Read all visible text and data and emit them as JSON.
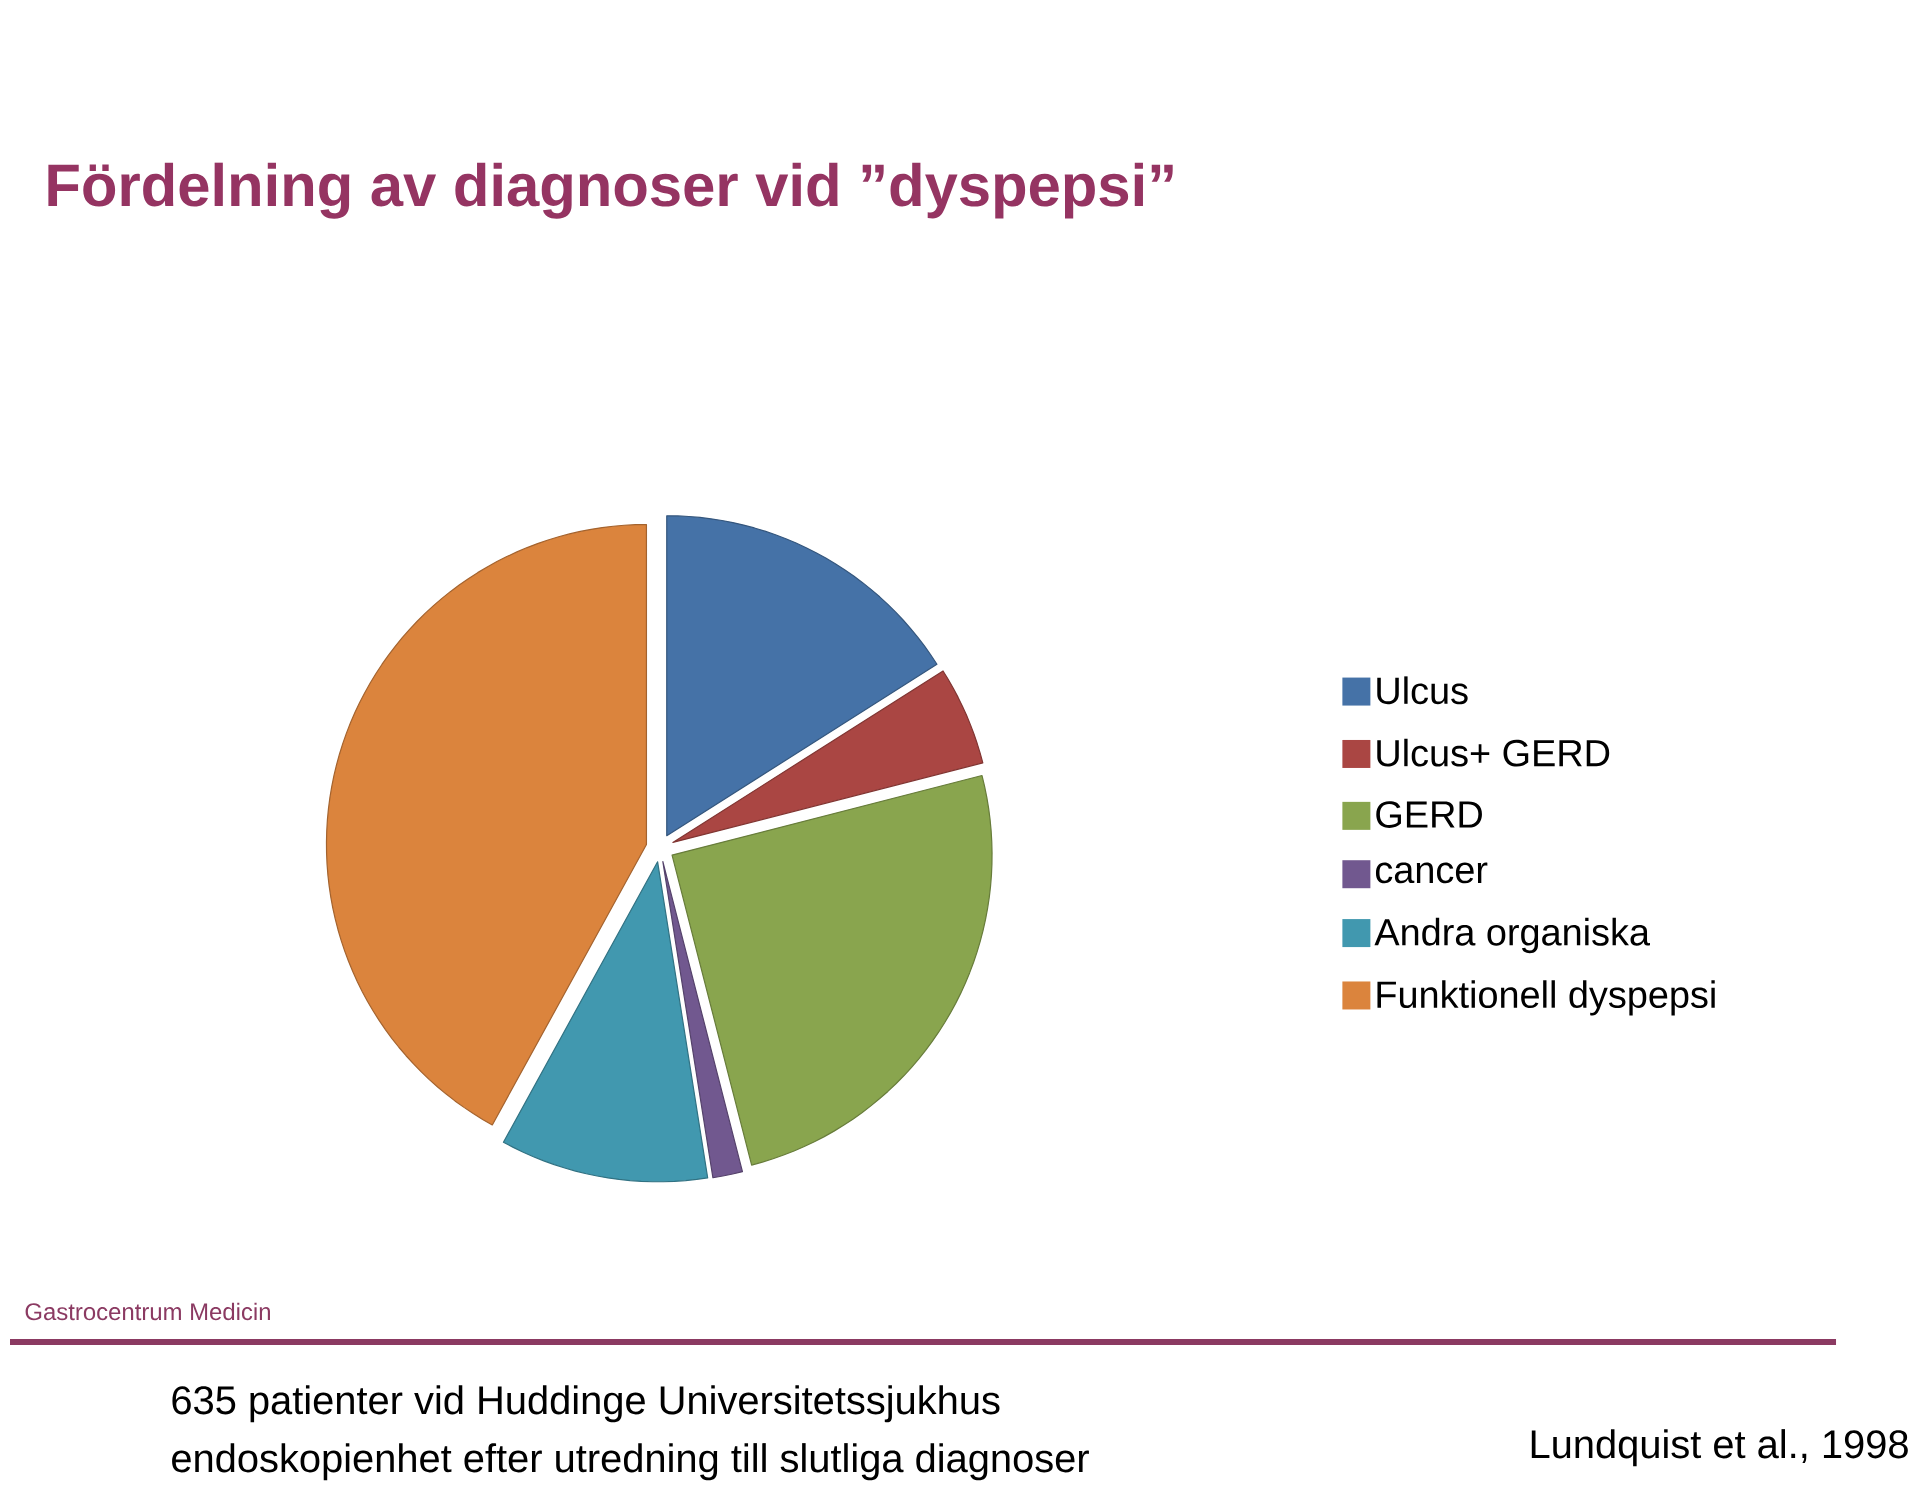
{
  "chart_data": {
    "type": "pie",
    "title": "Fördelning av diagnoser vid ”dyspepsi”",
    "categories": [
      "Ulcus",
      "Ulcus+ GERD",
      "GERD",
      "cancer",
      "Andra organiska",
      "Funktionell dyspepsi"
    ],
    "values": [
      16,
      5,
      25,
      1.5,
      10.5,
      42
    ],
    "colors": [
      "#4572a7",
      "#aa4643",
      "#89a54e",
      "#71588f",
      "#4198af",
      "#db843d"
    ],
    "legend": "right",
    "annotations": [
      "Gastrocentrum Medicin",
      "635 patienter vid Huddinge Universitetssjukhus",
      "endoskopienhet efter utredning till slutliga diagnoser",
      "Lundquist et al., 1998"
    ]
  }
}
